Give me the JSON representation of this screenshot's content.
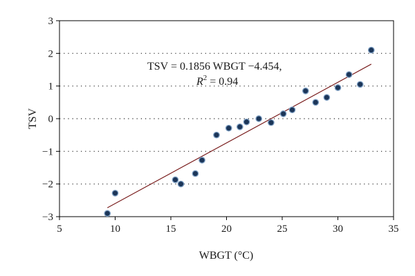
{
  "chart_data": {
    "type": "scatter",
    "xlabel": "WBGT (°C)",
    "ylabel": "TSV",
    "xlim": [
      5,
      35
    ],
    "ylim": [
      -3,
      3
    ],
    "xticks": [
      5,
      10,
      15,
      20,
      25,
      30,
      35
    ],
    "yticks": [
      -3,
      -2,
      -1,
      0,
      1,
      2,
      3
    ],
    "x_tick_labels": [
      "5",
      "10",
      "15",
      "20",
      "25",
      "30",
      "35"
    ],
    "y_tick_labels": [
      "−3",
      "−2",
      "−1",
      "0",
      "1",
      "2",
      "3"
    ],
    "grid": "horizontal dotted",
    "points": [
      {
        "x": 9.3,
        "y": -2.9
      },
      {
        "x": 10.0,
        "y": -2.28
      },
      {
        "x": 15.4,
        "y": -1.87
      },
      {
        "x": 15.9,
        "y": -2.0
      },
      {
        "x": 17.2,
        "y": -1.68
      },
      {
        "x": 17.8,
        "y": -1.27
      },
      {
        "x": 19.1,
        "y": -0.5
      },
      {
        "x": 20.2,
        "y": -0.29
      },
      {
        "x": 21.2,
        "y": -0.25
      },
      {
        "x": 21.8,
        "y": -0.1
      },
      {
        "x": 22.9,
        "y": 0.0
      },
      {
        "x": 24.0,
        "y": -0.12
      },
      {
        "x": 25.1,
        "y": 0.15
      },
      {
        "x": 25.9,
        "y": 0.27
      },
      {
        "x": 27.1,
        "y": 0.85
      },
      {
        "x": 28.0,
        "y": 0.5
      },
      {
        "x": 29.0,
        "y": 0.65
      },
      {
        "x": 30.0,
        "y": 0.95
      },
      {
        "x": 31.0,
        "y": 1.35
      },
      {
        "x": 32.0,
        "y": 1.05
      },
      {
        "x": 33.0,
        "y": 2.1
      }
    ],
    "fit_line": {
      "slope": 0.1856,
      "intercept": -4.454,
      "x_range": [
        9.3,
        33.0
      ],
      "color": "#7a1e1e"
    },
    "point_color": "#1b3558",
    "annotation": {
      "line1": "TSV = 0.1856 WBGT −4.454,",
      "line2_prefix": "R",
      "line2_sup": "2",
      "line2_suffix": " = 0.94"
    }
  }
}
